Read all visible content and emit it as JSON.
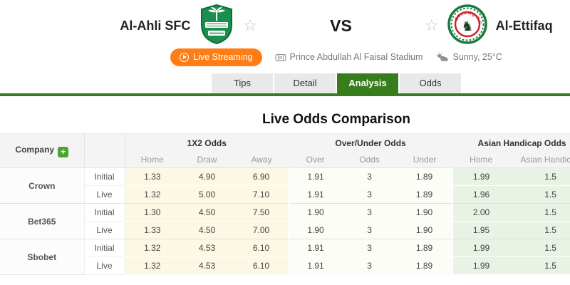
{
  "colors": {
    "accent_green": "#377d1e",
    "orange": "#ff7d17",
    "yellow_bg": "#fdf8e3",
    "ou_bg": "#fdfdf7",
    "ah_bg": "#e8f2e5",
    "ahli_green": "#1d8f4d",
    "ettifaq_green": "#1b7a3d",
    "ettifaq_red": "#cc2229"
  },
  "icons": {
    "favorite": "star-outline",
    "play": "play-circle",
    "venue": "stadium",
    "weather": "sun-behind-cloud",
    "add_company": "plus"
  },
  "header": {
    "home_team": {
      "name": "Al-Ahli SFC"
    },
    "away_team": {
      "name": "Al-Ettifaq",
      "badge_text": "ETTIFAQ F.C."
    },
    "vs_label": "VS",
    "live_streaming_label": "Live Streaming",
    "stadium": "Prince Abdullah Al Faisal Stadium",
    "weather": "Sunny, 25°C"
  },
  "tabs": [
    {
      "label": "Tips",
      "active": false
    },
    {
      "label": "Detail",
      "active": false
    },
    {
      "label": "Analysis",
      "active": true
    },
    {
      "label": "Odds",
      "active": false
    }
  ],
  "analysis": {
    "title": "Live Odds Comparison",
    "table": {
      "company_header": "Company",
      "add_label": "+",
      "groups": [
        "1X2 Odds",
        "Over/Under Odds",
        "Asian Handicap Odds"
      ],
      "subheaders": {
        "x12": [
          "Home",
          "Draw",
          "Away"
        ],
        "ou": [
          "Over",
          "Odds",
          "Under"
        ],
        "ah": [
          "Home",
          "Asian Handicap"
        ]
      },
      "rows": [
        {
          "company": "Crown",
          "type": "Initial",
          "x12": [
            "1.33",
            "4.90",
            "6.90"
          ],
          "ou": [
            "1.91",
            "3",
            "1.89"
          ],
          "ah": [
            "1.99",
            "1.5"
          ]
        },
        {
          "company": "Crown",
          "type": "Live",
          "x12": [
            "1.32",
            "5.00",
            "7.10"
          ],
          "ou": [
            "1.91",
            "3",
            "1.89"
          ],
          "ah": [
            "1.96",
            "1.5"
          ]
        },
        {
          "company": "Bet365",
          "type": "Initial",
          "x12": [
            "1.30",
            "4.50",
            "7.50"
          ],
          "ou": [
            "1.90",
            "3",
            "1.90"
          ],
          "ah": [
            "2.00",
            "1.5"
          ]
        },
        {
          "company": "Bet365",
          "type": "Live",
          "x12": [
            "1.33",
            "4.50",
            "7.00"
          ],
          "ou": [
            "1.90",
            "3",
            "1.90"
          ],
          "ah": [
            "1.95",
            "1.5"
          ]
        },
        {
          "company": "Sbobet",
          "type": "Initial",
          "x12": [
            "1.32",
            "4.53",
            "6.10"
          ],
          "ou": [
            "1.91",
            "3",
            "1.89"
          ],
          "ah": [
            "1.99",
            "1.5"
          ]
        },
        {
          "company": "Sbobet",
          "type": "Live",
          "x12": [
            "1.32",
            "4.53",
            "6.10"
          ],
          "ou": [
            "1.91",
            "3",
            "1.89"
          ],
          "ah": [
            "1.99",
            "1.5"
          ]
        }
      ]
    }
  }
}
